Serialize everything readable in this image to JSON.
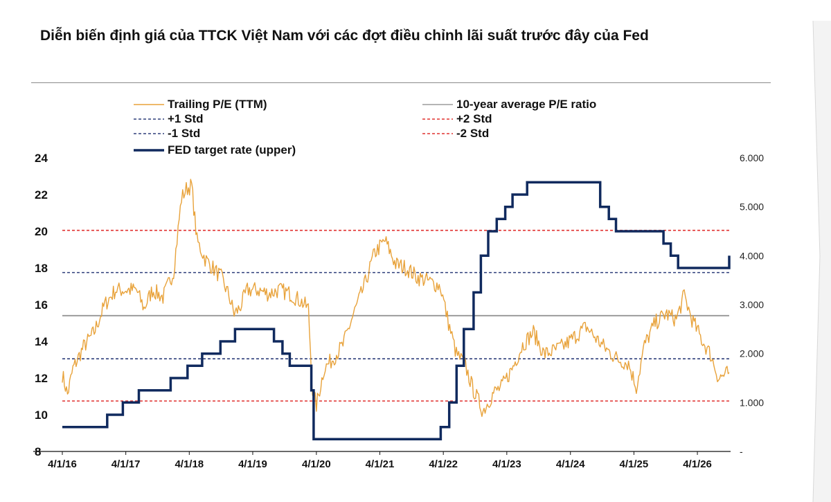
{
  "chart_data": {
    "type": "line",
    "title": "Diễn biến định giá của TTCK Việt Nam với các đợt điều chỉnh lãi suất trước đây của Fed",
    "legend": [
      {
        "label": "Trailing P/E (TTM)",
        "color": "#E8A23A",
        "style": "solid"
      },
      {
        "label": "10-year average P/E ratio",
        "color": "#9B9B9B",
        "style": "solid"
      },
      {
        "label": "+1 Std",
        "color": "#2E3F7A",
        "style": "dashed"
      },
      {
        "label": "+2 Std",
        "color": "#E0302F",
        "style": "dashed"
      },
      {
        "label": "-1 Std",
        "color": "#2E3F7A",
        "style": "dashed"
      },
      {
        "label": "-2 Std",
        "color": "#E0302F",
        "style": "dashed"
      },
      {
        "label": "FED target rate (upper)",
        "color": "#102A5E",
        "style": "solid"
      }
    ],
    "legend_placement": "top",
    "x_ticks": [
      "4/1/16",
      "4/1/17",
      "4/1/18",
      "4/1/19",
      "4/1/20",
      "4/1/21",
      "4/1/22",
      "4/1/23",
      "4/1/24",
      "4/1/25",
      "4/1/26"
    ],
    "x_range": [
      "2016-04-01",
      "2026-10-01"
    ],
    "y_left": {
      "ticks": [
        "8",
        "10",
        "12",
        "14",
        "16",
        "18",
        "20",
        "22",
        "24"
      ],
      "range": [
        8,
        24
      ]
    },
    "y_right": {
      "ticks": [
        "-",
        "1.000",
        "2.000",
        "3.000",
        "4.000",
        "5.000",
        "6.000"
      ],
      "range": [
        0,
        6
      ]
    },
    "reference_lines": {
      "avg": 15.4,
      "plus1": 17.75,
      "plus2": 20.05,
      "minus1": 13.05,
      "minus2": 10.75
    },
    "series": [
      {
        "name": "Trailing P/E (TTM)",
        "axis": "left",
        "x": [
          "2016-04-01",
          "2016-05-01",
          "2016-06-01",
          "2016-08-01",
          "2016-10-01",
          "2016-12-01",
          "2017-02-01",
          "2017-04-01",
          "2017-06-01",
          "2017-07-15",
          "2017-09-01",
          "2017-11-01",
          "2018-01-01",
          "2018-02-15",
          "2018-03-15",
          "2018-04-15",
          "2018-05-15",
          "2018-07-01",
          "2018-08-15",
          "2018-10-01",
          "2018-11-15",
          "2018-12-15",
          "2019-01-15",
          "2019-03-01",
          "2019-05-01",
          "2019-07-01",
          "2019-09-01",
          "2019-11-01",
          "2020-01-01",
          "2020-02-15",
          "2020-03-10",
          "2020-04-01",
          "2020-05-15",
          "2020-07-01",
          "2020-09-01",
          "2020-11-01",
          "2021-01-01",
          "2021-03-01",
          "2021-05-01",
          "2021-07-01",
          "2021-09-01",
          "2021-11-01",
          "2022-01-01",
          "2022-03-15",
          "2022-05-01",
          "2022-06-15",
          "2022-08-01",
          "2022-09-15",
          "2022-11-15",
          "2023-01-15",
          "2023-03-01",
          "2023-05-01",
          "2023-07-01",
          "2023-09-01",
          "2023-11-01",
          "2024-01-01",
          "2024-03-01",
          "2024-05-01",
          "2024-07-01",
          "2024-09-01",
          "2024-11-01",
          "2025-01-01",
          "2025-03-01",
          "2025-04-15",
          "2025-06-01",
          "2025-08-01",
          "2025-10-01",
          "2025-12-01",
          "2026-01-15",
          "2026-03-01",
          "2026-05-01",
          "2026-06-15",
          "2026-08-01",
          "2026-10-01"
        ],
        "values": [
          12.2,
          11.1,
          12.5,
          13.7,
          14.5,
          16.0,
          16.8,
          16.8,
          16.8,
          15.8,
          16.8,
          16.4,
          17.8,
          21.8,
          22.3,
          22.5,
          19.5,
          18.5,
          18.0,
          17.5,
          16.5,
          15.5,
          15.8,
          16.8,
          16.8,
          16.6,
          16.8,
          16.6,
          16.2,
          15.8,
          11.3,
          10.5,
          12.5,
          13.0,
          13.8,
          15.5,
          17.0,
          18.8,
          19.5,
          18.2,
          18.0,
          17.5,
          17.3,
          17.0,
          15.0,
          13.3,
          12.8,
          11.5,
          10.2,
          11.2,
          11.5,
          12.5,
          13.8,
          14.5,
          13.3,
          13.5,
          13.8,
          14.3,
          14.8,
          14.1,
          13.5,
          13.0,
          12.8,
          11.5,
          13.8,
          15.0,
          15.5,
          15.2,
          16.5,
          15.2,
          14.0,
          13.3,
          12.0,
          12.3
        ]
      },
      {
        "name": "FED target rate (upper)",
        "axis": "right",
        "step": true,
        "x": [
          "2016-04-01",
          "2016-12-15",
          "2017-03-15",
          "2017-06-15",
          "2017-12-15",
          "2018-03-22",
          "2018-06-14",
          "2018-09-27",
          "2018-12-20",
          "2019-08-01",
          "2019-09-19",
          "2019-10-31",
          "2020-03-03",
          "2020-03-16",
          "2022-03-17",
          "2022-05-05",
          "2022-06-16",
          "2022-07-28",
          "2022-09-22",
          "2022-11-03",
          "2022-12-15",
          "2023-02-02",
          "2023-03-23",
          "2023-05-04",
          "2023-07-27",
          "2024-09-19",
          "2024-11-08",
          "2024-12-19",
          "2025-09-18",
          "2025-10-30",
          "2025-12-11",
          "2026-09-25",
          "2026-10-01"
        ],
        "values": [
          0.5,
          0.75,
          1.0,
          1.25,
          1.5,
          1.75,
          2.0,
          2.25,
          2.5,
          2.25,
          2.0,
          1.75,
          1.25,
          0.25,
          0.5,
          1.0,
          1.75,
          2.5,
          3.25,
          4.0,
          4.5,
          4.75,
          5.0,
          5.25,
          5.5,
          5.0,
          4.75,
          4.5,
          4.25,
          4.0,
          3.75,
          3.75,
          4.0
        ]
      }
    ]
  }
}
